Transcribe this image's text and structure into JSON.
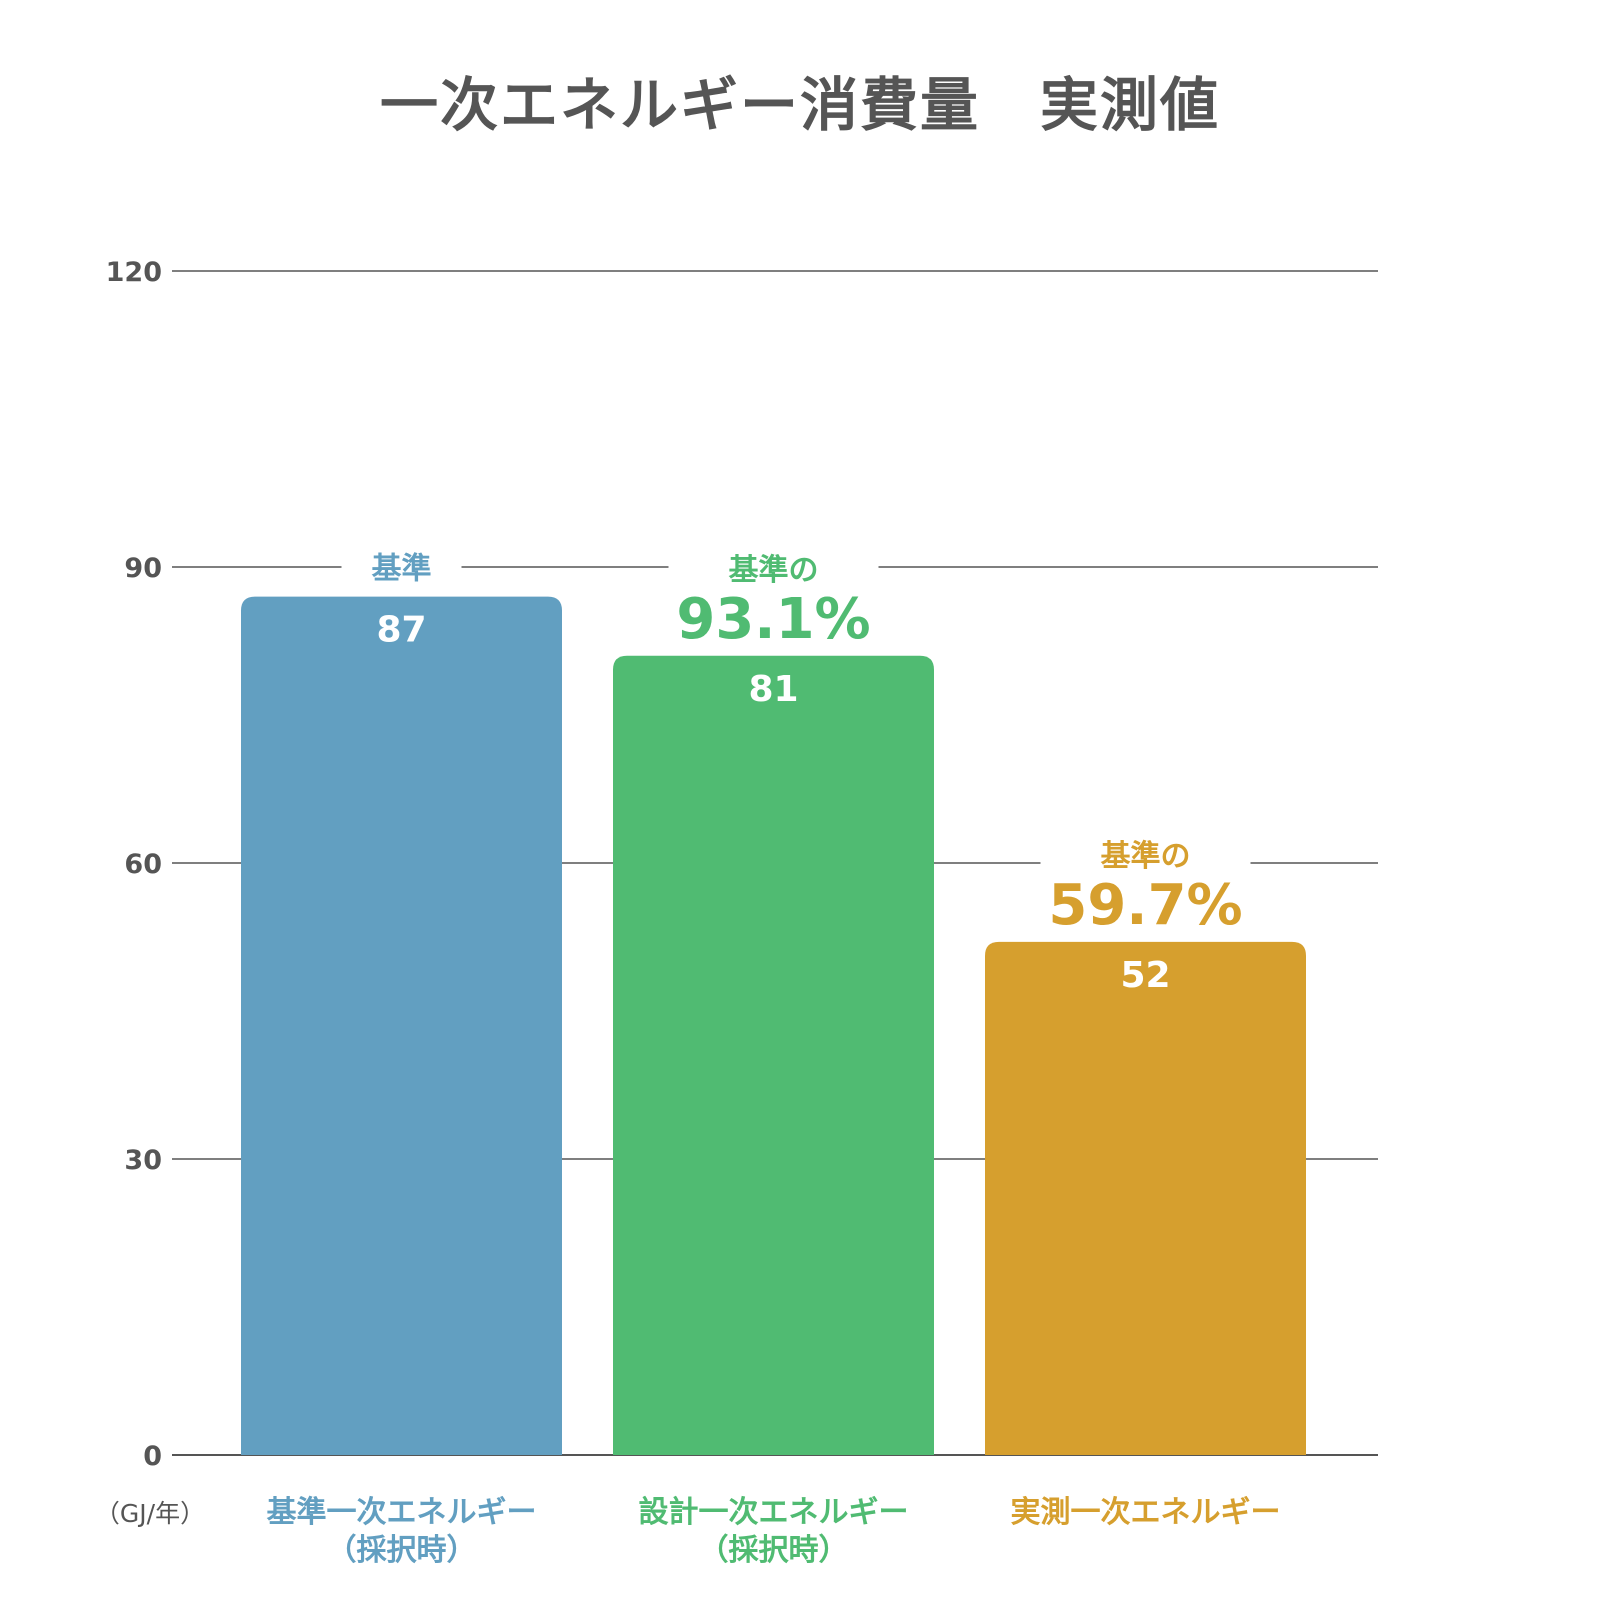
{
  "chart_data": {
    "type": "bar",
    "title": "一次エネルギー消費量　実測値",
    "unit": "（GJ/年）",
    "ylim": [
      0,
      120
    ],
    "yticks": [
      0,
      30,
      60,
      90,
      120
    ],
    "grid": true,
    "categories": [
      [
        "基準一次エネルギー",
        "（採択時）"
      ],
      [
        "設計一次エネルギー",
        "（採択時）"
      ],
      [
        "実測一次エネルギー"
      ]
    ],
    "values": [
      87,
      81,
      52
    ],
    "colors": [
      "#629fc1",
      "#50bb72",
      "#d69f2e"
    ],
    "annotations": [
      {
        "prefix": "基準",
        "percent": ""
      },
      {
        "prefix": "基準の",
        "percent": "93.1%"
      },
      {
        "prefix": "基準の",
        "percent": "59.7%"
      }
    ]
  }
}
